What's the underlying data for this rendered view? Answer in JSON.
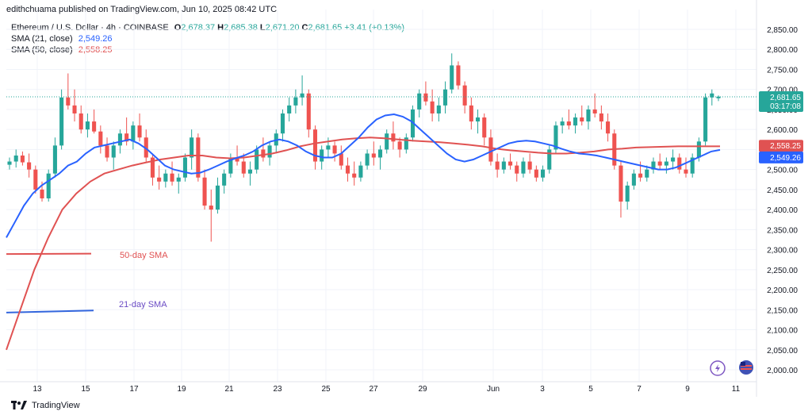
{
  "header": {
    "publisher": "edithchuama published on TradingView.com, Jun 10, 2025 08:42 UTC"
  },
  "legend": {
    "symbol": "Ethereum / U.S. Dollar · 4h · COINBASE",
    "open_label": "O",
    "open": "2,678.37",
    "high_label": "H",
    "high": "2,685.38",
    "low_label": "L",
    "low": "2,671.20",
    "close_label": "C",
    "close": "2,681.65",
    "change": "+3.41 (+0.13%)",
    "sma21_label": "SMA (21, close)",
    "sma21_value": "2,549.26",
    "sma50_label": "SMA (50, close)",
    "sma50_value": "2,558.25"
  },
  "footer": {
    "brand": "TradingView"
  },
  "colors": {
    "up": "#26a69a",
    "down": "#ef5350",
    "sma21": "#2962ff",
    "sma50": "#e05252",
    "grid": "#f0f3fa",
    "text": "#131722",
    "price_line": "#26a69a"
  },
  "icons": [
    "lightning-icon",
    "flag-icon",
    "tradingview-logo-icon"
  ],
  "chart_data": {
    "type": "candlestick",
    "interval": "4h",
    "ylim": [
      2000,
      2850
    ],
    "y_ticks": [
      "2,850.00",
      "2,800.00",
      "2,750.00",
      "2,700.00",
      "2,650.00",
      "2,600.00",
      "2,550.00",
      "2,500.00",
      "2,450.00",
      "2,400.00",
      "2,350.00",
      "2,300.00",
      "2,250.00",
      "2,200.00",
      "2,150.00",
      "2,100.00",
      "2,050.00",
      "2,000.00"
    ],
    "x_ticks": [
      "13",
      "15",
      "17",
      "19",
      "21",
      "23",
      "25",
      "27",
      "29",
      "Jun",
      "3",
      "5",
      "7",
      "9",
      "11"
    ],
    "price_label": {
      "value": "2,681.65",
      "countdown": "03:17:08"
    },
    "sma_labels": {
      "sma50": "2,558.25",
      "sma21": "2,549.26"
    },
    "annotations": {
      "sma50": "50-day SMA",
      "sma21": "21-day SMA"
    },
    "annotation_lines": {
      "sma50": {
        "y": [
          2289,
          2290
        ]
      },
      "sma21": {
        "y": [
          2143,
          2148
        ]
      }
    },
    "candles": [
      [
        2512,
        2530,
        2500,
        2520
      ],
      [
        2520,
        2550,
        2505,
        2535
      ],
      [
        2535,
        2545,
        2510,
        2518
      ],
      [
        2518,
        2540,
        2480,
        2500
      ],
      [
        2500,
        2510,
        2440,
        2450
      ],
      [
        2450,
        2470,
        2420,
        2428
      ],
      [
        2428,
        2500,
        2420,
        2490
      ],
      [
        2490,
        2580,
        2480,
        2560
      ],
      [
        2560,
        2700,
        2550,
        2680
      ],
      [
        2680,
        2740,
        2650,
        2660
      ],
      [
        2660,
        2700,
        2620,
        2640
      ],
      [
        2640,
        2660,
        2590,
        2600
      ],
      [
        2600,
        2640,
        2580,
        2620
      ],
      [
        2620,
        2650,
        2590,
        2595
      ],
      [
        2595,
        2610,
        2540,
        2560
      ],
      [
        2560,
        2580,
        2520,
        2530
      ],
      [
        2530,
        2570,
        2500,
        2560
      ],
      [
        2560,
        2600,
        2540,
        2590
      ],
      [
        2590,
        2630,
        2560,
        2570
      ],
      [
        2570,
        2620,
        2550,
        2610
      ],
      [
        2610,
        2640,
        2570,
        2580
      ],
      [
        2580,
        2600,
        2520,
        2530
      ],
      [
        2530,
        2540,
        2460,
        2480
      ],
      [
        2480,
        2510,
        2450,
        2470
      ],
      [
        2470,
        2500,
        2455,
        2490
      ],
      [
        2490,
        2520,
        2460,
        2470
      ],
      [
        2470,
        2490,
        2440,
        2480
      ],
      [
        2480,
        2540,
        2470,
        2530
      ],
      [
        2530,
        2600,
        2500,
        2580
      ],
      [
        2580,
        2590,
        2470,
        2480
      ],
      [
        2480,
        2500,
        2400,
        2410
      ],
      [
        2410,
        2450,
        2320,
        2400
      ],
      [
        2400,
        2480,
        2390,
        2460
      ],
      [
        2460,
        2500,
        2440,
        2490
      ],
      [
        2490,
        2540,
        2480,
        2530
      ],
      [
        2530,
        2560,
        2510,
        2520
      ],
      [
        2520,
        2540,
        2480,
        2490
      ],
      [
        2490,
        2520,
        2460,
        2500
      ],
      [
        2500,
        2560,
        2490,
        2550
      ],
      [
        2550,
        2580,
        2520,
        2530
      ],
      [
        2530,
        2570,
        2510,
        2560
      ],
      [
        2560,
        2600,
        2540,
        2590
      ],
      [
        2590,
        2650,
        2570,
        2640
      ],
      [
        2640,
        2680,
        2620,
        2660
      ],
      [
        2660,
        2700,
        2640,
        2680
      ],
      [
        2680,
        2735,
        2660,
        2690
      ],
      [
        2690,
        2700,
        2580,
        2600
      ],
      [
        2600,
        2610,
        2500,
        2520
      ],
      [
        2520,
        2560,
        2500,
        2550
      ],
      [
        2550,
        2580,
        2530,
        2560
      ],
      [
        2560,
        2570,
        2520,
        2540
      ],
      [
        2540,
        2560,
        2500,
        2510
      ],
      [
        2510,
        2530,
        2470,
        2490
      ],
      [
        2490,
        2520,
        2460,
        2480
      ],
      [
        2480,
        2520,
        2470,
        2510
      ],
      [
        2510,
        2550,
        2500,
        2540
      ],
      [
        2540,
        2570,
        2510,
        2530
      ],
      [
        2530,
        2560,
        2500,
        2550
      ],
      [
        2550,
        2600,
        2540,
        2590
      ],
      [
        2590,
        2620,
        2550,
        2570
      ],
      [
        2570,
        2580,
        2530,
        2550
      ],
      [
        2550,
        2590,
        2540,
        2580
      ],
      [
        2580,
        2660,
        2570,
        2650
      ],
      [
        2650,
        2700,
        2630,
        2690
      ],
      [
        2690,
        2720,
        2660,
        2670
      ],
      [
        2670,
        2700,
        2620,
        2640
      ],
      [
        2640,
        2680,
        2620,
        2660
      ],
      [
        2660,
        2720,
        2640,
        2700
      ],
      [
        2700,
        2790,
        2690,
        2760
      ],
      [
        2760,
        2770,
        2700,
        2710
      ],
      [
        2710,
        2720,
        2640,
        2660
      ],
      [
        2660,
        2680,
        2600,
        2620
      ],
      [
        2620,
        2650,
        2590,
        2630
      ],
      [
        2630,
        2640,
        2560,
        2580
      ],
      [
        2580,
        2600,
        2510,
        2520
      ],
      [
        2520,
        2540,
        2480,
        2500
      ],
      [
        2500,
        2530,
        2490,
        2520
      ],
      [
        2520,
        2540,
        2500,
        2510
      ],
      [
        2510,
        2520,
        2470,
        2490
      ],
      [
        2490,
        2530,
        2480,
        2520
      ],
      [
        2520,
        2540,
        2490,
        2500
      ],
      [
        2500,
        2510,
        2470,
        2480
      ],
      [
        2480,
        2510,
        2470,
        2500
      ],
      [
        2500,
        2560,
        2490,
        2550
      ],
      [
        2550,
        2620,
        2540,
        2610
      ],
      [
        2610,
        2630,
        2590,
        2620
      ],
      [
        2620,
        2650,
        2600,
        2610
      ],
      [
        2610,
        2640,
        2590,
        2630
      ],
      [
        2630,
        2660,
        2610,
        2620
      ],
      [
        2620,
        2660,
        2600,
        2650
      ],
      [
        2650,
        2690,
        2630,
        2640
      ],
      [
        2640,
        2660,
        2600,
        2620
      ],
      [
        2620,
        2640,
        2570,
        2590
      ],
      [
        2590,
        2600,
        2500,
        2510
      ],
      [
        2510,
        2520,
        2380,
        2420
      ],
      [
        2420,
        2470,
        2400,
        2460
      ],
      [
        2460,
        2500,
        2450,
        2490
      ],
      [
        2490,
        2520,
        2470,
        2480
      ],
      [
        2480,
        2510,
        2470,
        2500
      ],
      [
        2500,
        2530,
        2490,
        2520
      ],
      [
        2520,
        2540,
        2500,
        2510
      ],
      [
        2510,
        2530,
        2490,
        2520
      ],
      [
        2520,
        2550,
        2500,
        2530
      ],
      [
        2530,
        2540,
        2490,
        2500
      ],
      [
        2500,
        2530,
        2480,
        2490
      ],
      [
        2490,
        2540,
        2480,
        2530
      ],
      [
        2530,
        2580,
        2520,
        2570
      ],
      [
        2570,
        2690,
        2560,
        2680
      ],
      [
        2680,
        2700,
        2660,
        2690
      ],
      [
        2678,
        2685,
        2671,
        2682
      ]
    ],
    "sma21": [
      2330,
      2370,
      2410,
      2440,
      2460,
      2475,
      2490,
      2510,
      2520,
      2540,
      2555,
      2560,
      2565,
      2570,
      2575,
      2565,
      2550,
      2530,
      2510,
      2500,
      2495,
      2490,
      2492,
      2500,
      2510,
      2520,
      2528,
      2535,
      2545,
      2560,
      2570,
      2575,
      2570,
      2560,
      2545,
      2535,
      2530,
      2530,
      2540,
      2560,
      2580,
      2605,
      2625,
      2635,
      2638,
      2632,
      2620,
      2600,
      2580,
      2560,
      2540,
      2525,
      2520,
      2525,
      2535,
      2545,
      2555,
      2565,
      2570,
      2572,
      2570,
      2565,
      2560,
      2552,
      2545,
      2540,
      2538,
      2535,
      2530,
      2525,
      2520,
      2515,
      2510,
      2505,
      2500,
      2500,
      2505,
      2515,
      2525,
      2535,
      2545,
      2549
    ],
    "sma50": [
      2050,
      2150,
      2250,
      2330,
      2400,
      2440,
      2470,
      2490,
      2500,
      2510,
      2518,
      2525,
      2530,
      2535,
      2535,
      2530,
      2528,
      2530,
      2535,
      2540,
      2548,
      2558,
      2565,
      2570,
      2575,
      2578,
      2580,
      2578,
      2575,
      2572,
      2570,
      2568,
      2565,
      2562,
      2558,
      2552,
      2548,
      2545,
      2542,
      2540,
      2540,
      2542,
      2545,
      2550,
      2552,
      2555,
      2556,
      2557,
      2558,
      2558,
      2558,
      2558
    ]
  }
}
